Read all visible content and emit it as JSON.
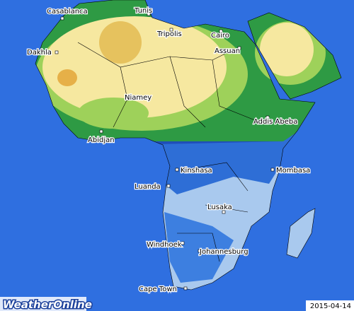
{
  "cities": [
    {
      "label": "Casablanca"
    },
    {
      "label": "Tunis"
    },
    {
      "label": "Tripolis"
    },
    {
      "label": "Cairo"
    },
    {
      "label": "Assuan"
    },
    {
      "label": "Dakhla"
    },
    {
      "label": "Niamey"
    },
    {
      "label": "Addis Abeba"
    },
    {
      "label": "Abidjan"
    },
    {
      "label": "Kinshasa"
    },
    {
      "label": "Mombasa"
    },
    {
      "label": "Luanda"
    },
    {
      "label": "Lusaka"
    },
    {
      "label": "Windhoek"
    },
    {
      "label": "Johannesburg"
    },
    {
      "label": "Cape Town"
    }
  ],
  "logo": "WeatherOnline",
  "date": "2015-04-14"
}
